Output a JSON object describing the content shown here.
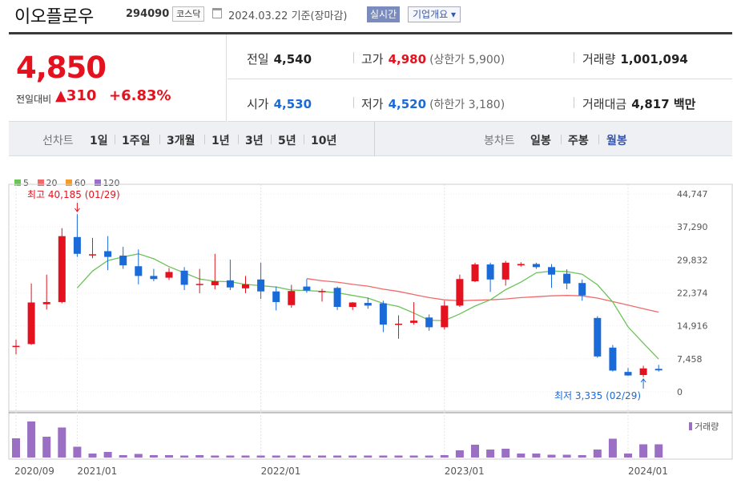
{
  "header": {
    "name": "이오플로우",
    "code": "294090",
    "market": "코스닥",
    "date": "2024.03.22 기준(장마감)",
    "realtime_btn": "실시간",
    "info_btn": "기업개요 ▾"
  },
  "price": {
    "current": "4,850",
    "change_label": "전일대비",
    "change_arrow": "▲",
    "change_value": "310",
    "change_pct": "+6.83%"
  },
  "stats": {
    "prev_label": "전일",
    "prev": "4,540",
    "high_label": "고가",
    "high": "4,980",
    "upper_limit": "(상한가 5,900)",
    "volume_label": "거래량",
    "volume": "1,001,094",
    "open_label": "시가",
    "open": "4,530",
    "low_label": "저가",
    "low": "4,520",
    "lower_limit": "(하한가 3,180)",
    "amount_label": "거래대금",
    "amount": "4,817 백만"
  },
  "periods": {
    "label": "선차트",
    "items": [
      "1일",
      "1주일",
      "3개월",
      "1년",
      "3년",
      "5년",
      "10년"
    ],
    "candle_label": "봉차트",
    "candle_items": [
      "일봉",
      "주봉",
      "월봉"
    ],
    "selected_candle": "월봉"
  },
  "colors": {
    "up": "#e3121e",
    "down": "#1a6ad8",
    "ma5": "#6cc35a",
    "ma20": "#f06a6a",
    "ma60": "#f39b2f",
    "ma120": "#9b6fc4"
  },
  "chart_data": {
    "type": "candlestick",
    "legend": [
      "5",
      "20",
      "60",
      "120"
    ],
    "y_ticks": [
      "44,747",
      "37,290",
      "29,832",
      "22,374",
      "14,916",
      "7,458",
      "0"
    ],
    "ylim": [
      0,
      44747
    ],
    "x_labels": [
      {
        "label": "2020/09",
        "index": 0
      },
      {
        "label": "2021/01",
        "index": 4
      },
      {
        "label": "2022/01",
        "index": 16
      },
      {
        "label": "2023/01",
        "index": 28
      },
      {
        "label": "2024/01",
        "index": 40
      }
    ],
    "high_annotation": "최고 40,185 (01/29)",
    "low_annotation": "최저 3,335 (02/29)",
    "volume_label": "거래량",
    "candles": [
      {
        "o": 10400,
        "h": 11800,
        "l": 8500,
        "c": 10400
      },
      {
        "o": 10800,
        "h": 24500,
        "l": 10600,
        "c": 20200
      },
      {
        "o": 19800,
        "h": 26500,
        "l": 18600,
        "c": 20300
      },
      {
        "o": 20300,
        "h": 37000,
        "l": 20000,
        "c": 35200
      },
      {
        "o": 35000,
        "h": 40185,
        "l": 30500,
        "c": 31200
      },
      {
        "o": 31000,
        "h": 34800,
        "l": 30200,
        "c": 31100
      },
      {
        "o": 31800,
        "h": 35200,
        "l": 27500,
        "c": 30500
      },
      {
        "o": 30800,
        "h": 32800,
        "l": 27800,
        "c": 28600
      },
      {
        "o": 28400,
        "h": 32200,
        "l": 24300,
        "c": 26200
      },
      {
        "o": 26200,
        "h": 27800,
        "l": 25000,
        "c": 25500
      },
      {
        "o": 25800,
        "h": 28000,
        "l": 25300,
        "c": 27100
      },
      {
        "o": 27400,
        "h": 28200,
        "l": 23000,
        "c": 24200
      },
      {
        "o": 24200,
        "h": 27800,
        "l": 22300,
        "c": 24400
      },
      {
        "o": 24100,
        "h": 31200,
        "l": 23200,
        "c": 25000
      },
      {
        "o": 25200,
        "h": 29900,
        "l": 23000,
        "c": 23600
      },
      {
        "o": 23400,
        "h": 26200,
        "l": 22300,
        "c": 24300
      },
      {
        "o": 25400,
        "h": 29200,
        "l": 21000,
        "c": 22700
      },
      {
        "o": 22700,
        "h": 23800,
        "l": 18400,
        "c": 20300
      },
      {
        "o": 19600,
        "h": 24200,
        "l": 19000,
        "c": 22800
      },
      {
        "o": 23800,
        "h": 25500,
        "l": 22400,
        "c": 22900
      },
      {
        "o": 22800,
        "h": 23300,
        "l": 20400,
        "c": 22800
      },
      {
        "o": 23500,
        "h": 23800,
        "l": 18500,
        "c": 19200
      },
      {
        "o": 19200,
        "h": 20300,
        "l": 18500,
        "c": 20200
      },
      {
        "o": 20100,
        "h": 21300,
        "l": 18800,
        "c": 19500
      },
      {
        "o": 20000,
        "h": 20600,
        "l": 13500,
        "c": 15200
      },
      {
        "o": 15200,
        "h": 17300,
        "l": 12000,
        "c": 15400
      },
      {
        "o": 15600,
        "h": 20300,
        "l": 15200,
        "c": 16100
      },
      {
        "o": 16800,
        "h": 17500,
        "l": 13800,
        "c": 14600
      },
      {
        "o": 14600,
        "h": 20600,
        "l": 14100,
        "c": 19500
      },
      {
        "o": 19500,
        "h": 26500,
        "l": 19200,
        "c": 25500
      },
      {
        "o": 25000,
        "h": 29200,
        "l": 24800,
        "c": 28800
      },
      {
        "o": 28800,
        "h": 29200,
        "l": 22600,
        "c": 25400
      },
      {
        "o": 25400,
        "h": 29600,
        "l": 24000,
        "c": 29200
      },
      {
        "o": 28600,
        "h": 29300,
        "l": 28300,
        "c": 28900
      },
      {
        "o": 28900,
        "h": 29200,
        "l": 27800,
        "c": 28200
      },
      {
        "o": 28200,
        "h": 28900,
        "l": 23500,
        "c": 26500
      },
      {
        "o": 26700,
        "h": 27700,
        "l": 23200,
        "c": 24500
      },
      {
        "o": 24600,
        "h": 25400,
        "l": 20600,
        "c": 21800
      },
      {
        "o": 16700,
        "h": 17100,
        "l": 7700,
        "c": 8000
      },
      {
        "o": 10000,
        "h": 10600,
        "l": 4600,
        "c": 4800
      },
      {
        "o": 4500,
        "h": 5400,
        "l": 3600,
        "c": 3700
      },
      {
        "o": 3800,
        "h": 5900,
        "l": 3335,
        "c": 5300
      },
      {
        "o": 5200,
        "h": 6100,
        "l": 4600,
        "c": 4850
      }
    ],
    "volume": [
      0.48,
      0.9,
      0.52,
      0.75,
      0.27,
      0.1,
      0.14,
      0.06,
      0.09,
      0.06,
      0.06,
      0.05,
      0.06,
      0.05,
      0.05,
      0.05,
      0.05,
      0.05,
      0.05,
      0.05,
      0.05,
      0.05,
      0.05,
      0.05,
      0.05,
      0.05,
      0.05,
      0.05,
      0.06,
      0.18,
      0.32,
      0.2,
      0.22,
      0.1,
      0.1,
      0.07,
      0.07,
      0.06,
      0.2,
      0.47,
      0.1,
      0.33,
      0.33
    ],
    "ma5": [
      null,
      null,
      null,
      null,
      23500,
      27300,
      29700,
      30500,
      31200,
      30100,
      28300,
      26900,
      25500,
      25000,
      24900,
      24300,
      24000,
      23700,
      23000,
      22900,
      22700,
      22400,
      21800,
      21200,
      20000,
      19300,
      17800,
      16200,
      16100,
      17600,
      19400,
      20800,
      23100,
      24800,
      26900,
      27300,
      27200,
      26600,
      24200,
      20300,
      14700,
      11000,
      7400
    ],
    "ma20": [
      null,
      null,
      null,
      null,
      null,
      null,
      null,
      null,
      null,
      null,
      null,
      null,
      null,
      null,
      null,
      null,
      null,
      null,
      null,
      25600,
      25100,
      24800,
      24300,
      23900,
      23200,
      22700,
      22000,
      21300,
      20800,
      20600,
      20700,
      20800,
      21000,
      21300,
      21500,
      21700,
      21800,
      21700,
      21200,
      20400,
      19600,
      18800,
      18000
    ]
  }
}
